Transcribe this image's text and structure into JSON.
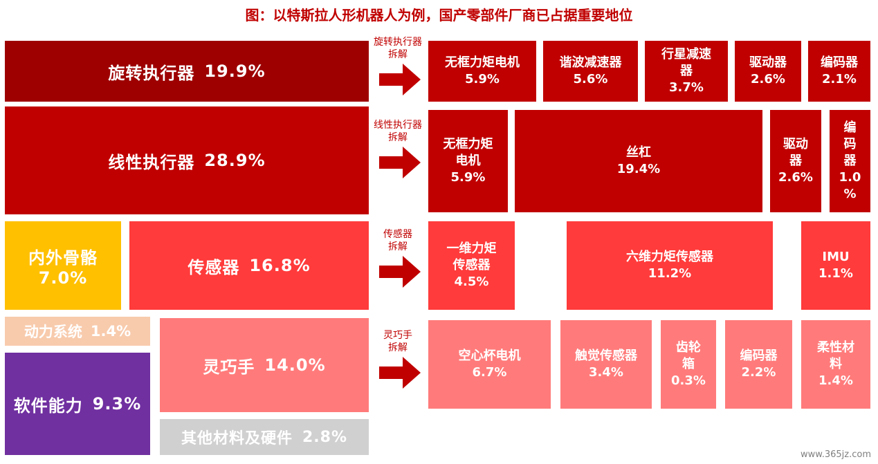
{
  "title": "图：以特斯拉人形机器人为例，国产零部件厂商已占据重要地位",
  "watermark": "www.365jz.com",
  "colors": {
    "rotary": "#9e0000",
    "linear": "#c00000",
    "sensor": "#ff3b3b",
    "hand": "#ff7b7b",
    "skeleton": "#ffc000",
    "power": "#f8cbad",
    "software": "#7030a0",
    "other": "#d0d0d0",
    "title": "#c00000"
  },
  "main": {
    "rotary": {
      "name": "旋转执行器",
      "value": "19.9%"
    },
    "linear": {
      "name": "线性执行器",
      "value": "28.9%"
    },
    "skeleton": {
      "name": "内外骨骼",
      "value": "7.0%"
    },
    "sensor": {
      "name": "传感器",
      "value": "16.8%"
    },
    "power": {
      "name": "动力系统",
      "value": "1.4%"
    },
    "hand": {
      "name": "灵巧手",
      "value": "14.0%"
    },
    "software": {
      "name": "软件能力",
      "value": "9.3%"
    },
    "other": {
      "name": "其他材料及硬件",
      "value": "2.8%"
    }
  },
  "arrows": {
    "rotary": {
      "l1": "旋转执行器",
      "l2": "拆解"
    },
    "linear": {
      "l1": "线性执行器",
      "l2": "拆解"
    },
    "sensor": {
      "l1": "传感器",
      "l2": "拆解"
    },
    "hand": {
      "l1": "灵巧手",
      "l2": "拆解"
    }
  },
  "rotary_parts": [
    {
      "l1": "无框力矩电机",
      "l2": "",
      "value": "5.9%"
    },
    {
      "l1": "谐波减速器",
      "l2": "",
      "value": "5.6%"
    },
    {
      "l1": "行星减速",
      "l2": "器",
      "value": "3.7%"
    },
    {
      "l1": "驱动器",
      "l2": "",
      "value": "2.6%"
    },
    {
      "l1": "编码器",
      "l2": "",
      "value": "2.1%"
    }
  ],
  "linear_parts": [
    {
      "l1": "无框力矩",
      "l2": "电机",
      "value": "5.9%"
    },
    {
      "l1": "丝杠",
      "l2": "",
      "value": "19.4%"
    },
    {
      "l1": "驱动",
      "l2": "器",
      "value": "2.6%"
    },
    {
      "l1": "编",
      "l2": "码",
      "l3": "器",
      "l4": "1.0",
      "l5": "%"
    }
  ],
  "sensor_parts": [
    {
      "l1": "一维力矩",
      "l2": "传感器",
      "value": "4.5%"
    },
    {
      "l1": "六维力矩传感器",
      "l2": "",
      "value": "11.2%"
    },
    {
      "l1": "IMU",
      "l2": "",
      "value": "1.1%"
    }
  ],
  "hand_parts": [
    {
      "l1": "空心杯电机",
      "l2": "",
      "value": "6.7%"
    },
    {
      "l1": "触觉传感器",
      "l2": "",
      "value": "3.4%"
    },
    {
      "l1": "齿轮",
      "l2": "箱",
      "value": "0.3%"
    },
    {
      "l1": "编码器",
      "l2": "",
      "value": "2.2%"
    },
    {
      "l1": "柔性材",
      "l2": "料",
      "value": "1.4%"
    }
  ]
}
